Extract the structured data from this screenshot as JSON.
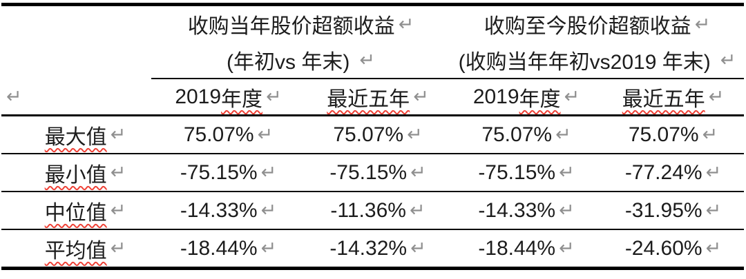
{
  "marks": {
    "line_break": "↵"
  },
  "colors": {
    "text": "#1c1c1c",
    "rule": "#000000",
    "paragraph_mark": "#8f8f8f",
    "spellcheck_squiggle": "#ee4136"
  },
  "header_groups": [
    {
      "title": "收购当年股价超额收益",
      "subtitle": "(年初vs 年末)"
    },
    {
      "title": "收购至今股价超额收益",
      "subtitle": "(收购当年年初vs2019 年末)"
    }
  ],
  "column_headers": [
    {
      "pre": "2019 ",
      "wavy": "年度"
    },
    {
      "pre": "",
      "wavy": "最近五年"
    },
    {
      "pre": "2019 ",
      "wavy": "年度"
    },
    {
      "pre": "",
      "wavy": "最近五年"
    }
  ],
  "rows": [
    {
      "label": "最大值",
      "values": [
        "75.07%",
        "75.07%",
        "75.07%",
        "75.07%"
      ]
    },
    {
      "label": "最小值",
      "values": [
        "-75.15%",
        "-75.15%",
        "-75.15%",
        "-77.24%"
      ]
    },
    {
      "label": "中位值",
      "values": [
        "-14.33%",
        "-11.36%",
        "-14.33%",
        "-31.95%"
      ]
    },
    {
      "label": "平均值",
      "values": [
        "-18.44%",
        "-14.32%",
        "-18.44%",
        "-24.60%"
      ]
    }
  ]
}
